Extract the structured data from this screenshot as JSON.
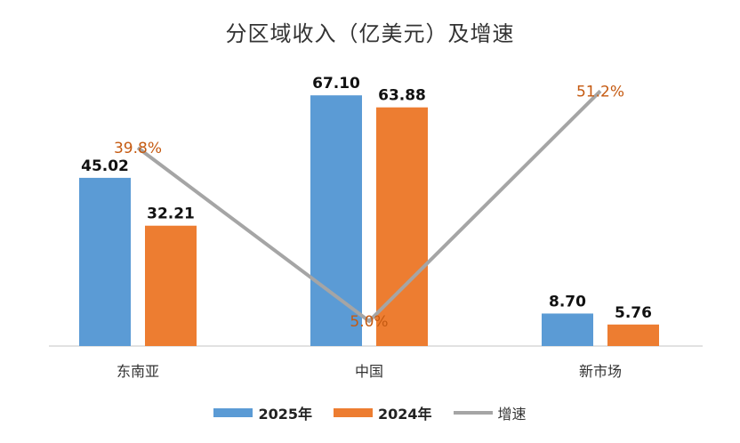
{
  "chart_data": {
    "type": "bar",
    "title": "分区域收入（亿美元）及增速",
    "categories": [
      "东南亚",
      "中国",
      "新市场"
    ],
    "series": [
      {
        "name": "2025年",
        "type": "bar",
        "color": "#5B9BD5",
        "values": [
          45.02,
          67.1,
          8.7
        ],
        "labels": [
          "45.02",
          "67.10",
          "8.70"
        ]
      },
      {
        "name": "2024年",
        "type": "bar",
        "color": "#ED7D31",
        "values": [
          32.21,
          63.88,
          5.76
        ],
        "labels": [
          "32.21",
          "63.88",
          "5.76"
        ]
      },
      {
        "name": "增速",
        "type": "line",
        "color": "#A5A5A5",
        "values": [
          39.8,
          5.0,
          51.2
        ],
        "labels": [
          "39.8%",
          "5.0%",
          "51.2%"
        ],
        "label_color": "#C55A11"
      }
    ],
    "ylim": [
      0,
      80
    ],
    "secondary_ylim": [
      0,
      60
    ],
    "grid": false,
    "legend_position": "bottom"
  }
}
